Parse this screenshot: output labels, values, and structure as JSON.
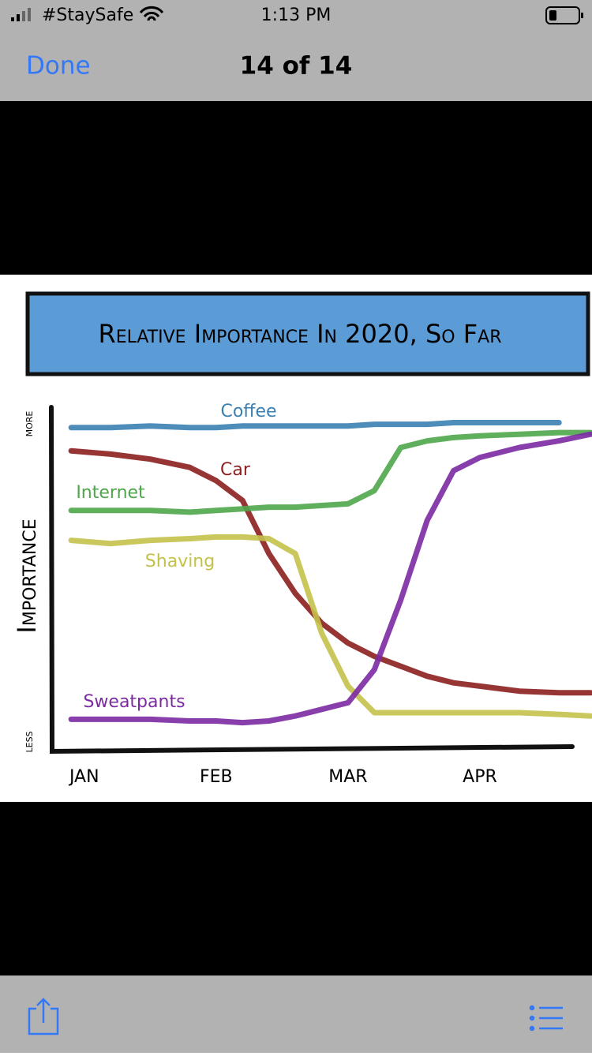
{
  "status_bar": {
    "carrier": "#StaySafe",
    "time": "1:13 PM"
  },
  "nav_bar": {
    "done": "Done",
    "title": "14 of 14"
  },
  "chart_data": {
    "type": "line",
    "title": "Relative Importance In 2020, So Far",
    "y_label": "Importance",
    "x": [
      -0.1,
      0.2,
      0.5,
      0.8,
      1.0,
      1.2,
      1.4,
      1.6,
      1.8,
      2.0,
      2.2,
      2.4,
      2.6,
      2.8,
      3.0,
      3.3,
      3.6,
      3.84
    ],
    "xlim": [
      -0.25,
      3.85
    ],
    "xticks": [
      {
        "value": 0,
        "label": "JAN"
      },
      {
        "value": 1,
        "label": "FEB"
      },
      {
        "value": 2,
        "label": "MAR"
      },
      {
        "value": 3,
        "label": "APR"
      }
    ],
    "ylim": [
      0,
      100
    ],
    "yticks": [
      {
        "value": 0,
        "label": "LESS"
      },
      {
        "value": 100,
        "label": "MORE"
      }
    ],
    "grid": false,
    "series": [
      {
        "name": "Coffee",
        "color": "#3b80b3",
        "values": [
          96,
          96,
          96.5,
          96,
          96,
          96.5,
          96.5,
          96.5,
          96.5,
          96.5,
          97,
          97,
          97,
          97.5,
          97.5,
          97.5,
          97.5,
          null
        ]
      },
      {
        "name": "Car",
        "color": "#8c1f1f",
        "values": [
          89,
          88,
          86.5,
          84,
          80,
          74,
          58,
          46,
          37,
          31,
          27,
          24,
          21,
          19,
          18,
          16.5,
          16,
          16
        ]
      },
      {
        "name": "Internet",
        "color": "#4fa64a",
        "values": [
          71,
          71,
          71,
          70.5,
          71,
          71.5,
          72,
          72,
          72.5,
          73,
          77,
          90,
          92,
          93,
          93.5,
          94,
          94.5,
          94.5
        ]
      },
      {
        "name": "Shaving",
        "color": "#c4c14a",
        "values": [
          62,
          61,
          62,
          62.5,
          63,
          63,
          62.5,
          58,
          34,
          18,
          10,
          10,
          10,
          10,
          10,
          10,
          9.5,
          9
        ]
      },
      {
        "name": "Sweatpants",
        "color": "#7b2aa3",
        "values": [
          8,
          8,
          8,
          7.5,
          7.5,
          7,
          7.5,
          9,
          11,
          13,
          23,
          44,
          68,
          83,
          87,
          90,
          92,
          94
        ]
      }
    ]
  }
}
